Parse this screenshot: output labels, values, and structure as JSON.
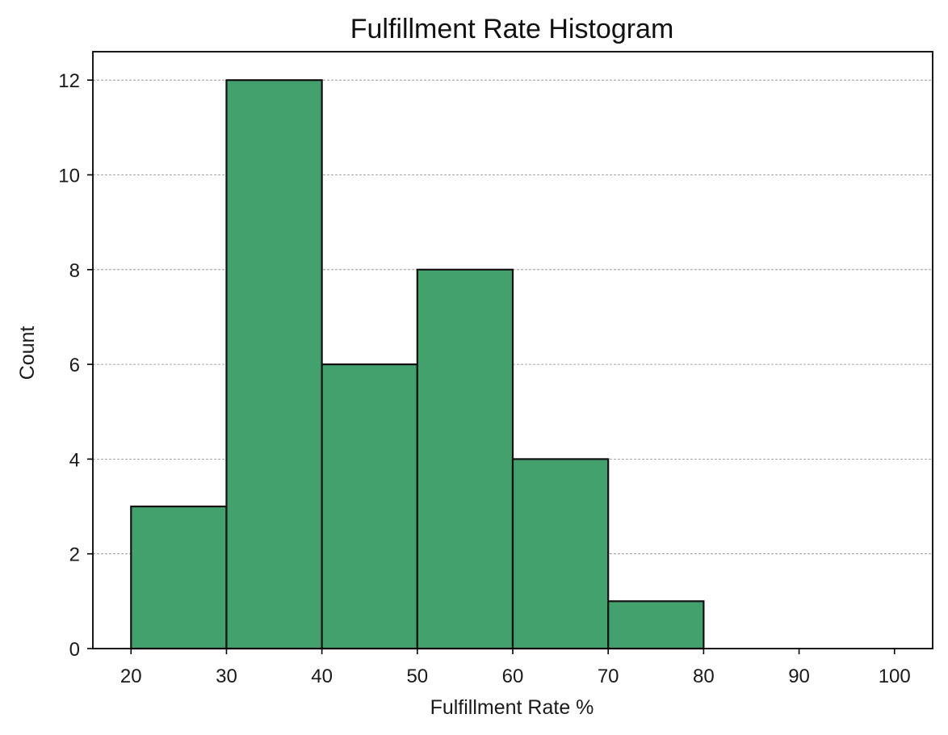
{
  "chart_data": {
    "type": "bar",
    "title": "Fulfillment Rate Histogram",
    "xlabel": "Fulfillment Rate %",
    "ylabel": "Count",
    "bins": [
      {
        "start": 20,
        "end": 30,
        "count": 3
      },
      {
        "start": 30,
        "end": 40,
        "count": 12
      },
      {
        "start": 40,
        "end": 50,
        "count": 6
      },
      {
        "start": 50,
        "end": 60,
        "count": 8
      },
      {
        "start": 60,
        "end": 70,
        "count": 4
      },
      {
        "start": 70,
        "end": 80,
        "count": 1
      }
    ],
    "x_ticks": [
      20,
      30,
      40,
      50,
      60,
      70,
      80,
      90,
      100
    ],
    "y_ticks": [
      0,
      2,
      4,
      6,
      8,
      10,
      12
    ],
    "xlim": [
      16,
      104
    ],
    "ylim": [
      0,
      12.6
    ],
    "grid": "horizontal dashed",
    "legend": "none",
    "bar_color": "#43a16d",
    "edge_color": "#111111"
  }
}
